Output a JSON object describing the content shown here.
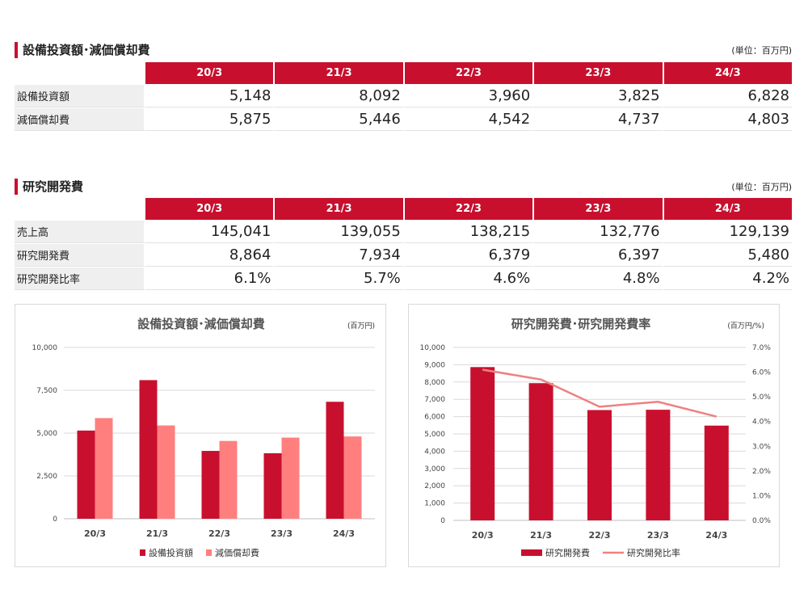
{
  "colors": {
    "primary": "#c8102e",
    "secondary": "#ff7f7f",
    "line": "#f08080"
  },
  "capex_section": {
    "title": "設備投資額･減価償却費",
    "unit": "(単位：百万円)",
    "headers": [
      "20/3",
      "21/3",
      "22/3",
      "23/3",
      "24/3"
    ],
    "rows": [
      {
        "label": "設備投資額",
        "values": [
          "5,148",
          "8,092",
          "3,960",
          "3,825",
          "6,828"
        ]
      },
      {
        "label": "減価償却費",
        "values": [
          "5,875",
          "5,446",
          "4,542",
          "4,737",
          "4,803"
        ]
      }
    ]
  },
  "rd_section": {
    "title": "研究開発費",
    "unit": "(単位：百万円)",
    "headers": [
      "20/3",
      "21/3",
      "22/3",
      "23/3",
      "24/3"
    ],
    "rows": [
      {
        "label": "売上高",
        "values": [
          "145,041",
          "139,055",
          "138,215",
          "132,776",
          "129,139"
        ]
      },
      {
        "label": "研究開発費",
        "values": [
          "8,864",
          "7,934",
          "6,379",
          "6,397",
          "5,480"
        ]
      },
      {
        "label": "研究開発比率",
        "values": [
          "6.1%",
          "5.7%",
          "4.6%",
          "4.8%",
          "4.2%"
        ]
      }
    ]
  },
  "chart_data": [
    {
      "type": "bar",
      "title": "設備投資額･減価償却費",
      "unit_label": "(百万円)",
      "categories": [
        "20/3",
        "21/3",
        "22/3",
        "23/3",
        "24/3"
      ],
      "series": [
        {
          "name": "設備投資額",
          "values": [
            5148,
            8092,
            3960,
            3825,
            6828
          ],
          "color": "#c8102e"
        },
        {
          "name": "減価償却費",
          "values": [
            5875,
            5446,
            4542,
            4737,
            4803
          ],
          "color": "#ff7f7f"
        }
      ],
      "ylim": [
        0,
        10000
      ],
      "yticks": [
        "0",
        "2,500",
        "5,000",
        "7,500",
        "10,000"
      ],
      "grid": true,
      "legend": "bottom"
    },
    {
      "type": "bar",
      "title": "研究開発費･研究開発費率",
      "unit_label": "(百万円/%)",
      "categories": [
        "20/3",
        "21/3",
        "22/3",
        "23/3",
        "24/3"
      ],
      "series": [
        {
          "name": "研究開発費",
          "kind": "bar",
          "axis": "left",
          "values": [
            8864,
            7934,
            6379,
            6397,
            5480
          ],
          "color": "#c8102e"
        },
        {
          "name": "研究開発比率",
          "kind": "line",
          "axis": "right",
          "values": [
            6.1,
            5.7,
            4.6,
            4.8,
            4.2
          ],
          "color": "#f08080"
        }
      ],
      "ylim": [
        0,
        10000
      ],
      "yticks": [
        "0",
        "1,000",
        "2,000",
        "3,000",
        "4,000",
        "5,000",
        "6,000",
        "7,000",
        "8,000",
        "9,000",
        "10,000"
      ],
      "y2lim": [
        0,
        7
      ],
      "y2ticks": [
        "0.0%",
        "1.0%",
        "2.0%",
        "3.0%",
        "4.0%",
        "5.0%",
        "6.0%",
        "7.0%"
      ],
      "grid": true,
      "legend": "bottom"
    }
  ]
}
